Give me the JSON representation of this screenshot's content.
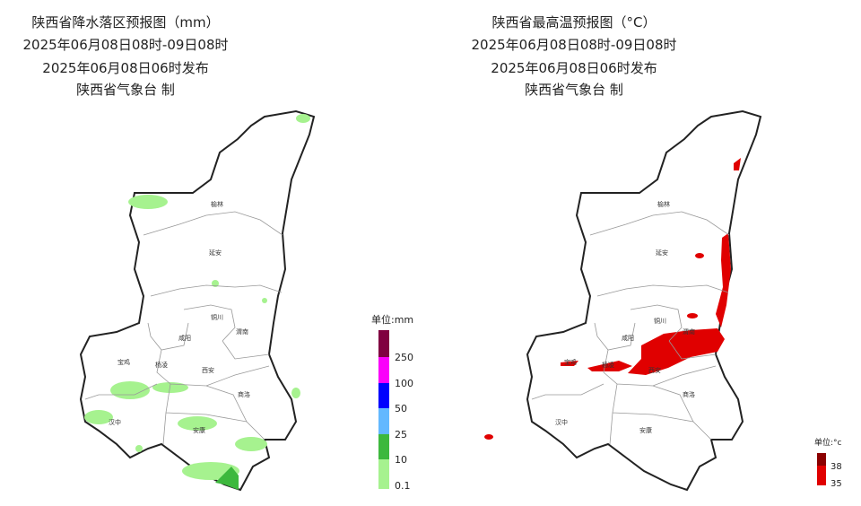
{
  "left_map": {
    "title_lines": [
      "陕西省降水落区预报图（mm）",
      "2025年06月08日08时-09日08时",
      "2025年06月08日06时发布",
      "陕西省气象台 制"
    ],
    "cities": [
      "榆林",
      "延安",
      "铜川",
      "渭南",
      "咸阳",
      "宝鸡",
      "杨凌",
      "西安",
      "商洛",
      "汉中",
      "安康"
    ],
    "legend": {
      "unit": "单位:mm",
      "labels": [
        "250",
        "100",
        "50",
        "25",
        "10",
        "0.1"
      ]
    }
  },
  "right_map": {
    "title_lines": [
      "陕西省最高温预报图（°C）",
      "2025年06月08日08时-09日08时",
      "2025年06月08日06时发布",
      "陕西省气象台 制"
    ],
    "cities": [
      "榆林",
      "延安",
      "铜川",
      "渭南",
      "咸阳",
      "宝鸡",
      "杨凌",
      "西安",
      "商洛",
      "汉中",
      "安康"
    ],
    "legend": {
      "unit": "单位:°c",
      "labels": [
        "38",
        "35"
      ]
    }
  }
}
